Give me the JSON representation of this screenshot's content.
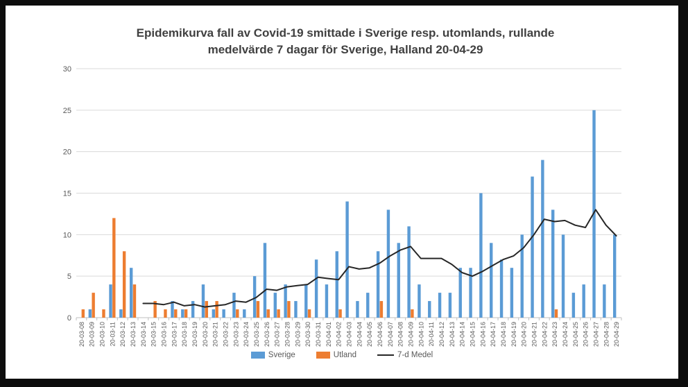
{
  "chart": {
    "title_line1": "Epidemikurva fall av Covid-19 smittade i Sverige resp. utomlands, rullande",
    "title_line2": "medelvärde 7 dagar för Sverige, Halland 20-04-29"
  },
  "chart_data": {
    "type": "bar",
    "title": "Epidemikurva fall av Covid-19 smittade i Sverige resp. utomlands, rullande medelvärde 7 dagar för Sverige, Halland 20-04-29",
    "xlabel": "",
    "ylabel": "",
    "ylim": [
      0,
      30
    ],
    "ytick_interval": 5,
    "grid": true,
    "legend_position": "bottom",
    "categories": [
      "20-03-08",
      "20-03-09",
      "20-03-10",
      "20-03-11",
      "20-03-12",
      "20-03-13",
      "20-03-14",
      "20-03-15",
      "20-03-16",
      "20-03-17",
      "20-03-18",
      "20-03-19",
      "20-03-20",
      "20-03-21",
      "20-03-22",
      "20-03-23",
      "20-03-24",
      "20-03-25",
      "20-03-26",
      "20-03-27",
      "20-03-28",
      "20-03-29",
      "20-03-30",
      "20-03-31",
      "20-04-01",
      "20-04-02",
      "20-04-03",
      "20-04-04",
      "20-04-05",
      "20-04-06",
      "20-04-07",
      "20-04-08",
      "20-04-09",
      "20-04-10",
      "20-04-11",
      "20-04-12",
      "20-04-13",
      "20-04-14",
      "20-04-15",
      "20-04-16",
      "20-04-17",
      "20-04-18",
      "20-04-19",
      "20-04-20",
      "20-04-21",
      "20-04-22",
      "20-04-23",
      "20-04-24",
      "20-04-25",
      "20-04-26",
      "20-04-27",
      "20-04-28",
      "20-04-29"
    ],
    "series": [
      {
        "name": "Sverige",
        "type": "bar",
        "color": "#5B9BD5",
        "values": [
          0,
          1,
          0,
          4,
          1,
          6,
          0,
          0,
          0,
          2,
          1,
          2,
          4,
          1,
          1,
          3,
          1,
          5,
          9,
          3,
          4,
          2,
          4,
          7,
          4,
          8,
          14,
          2,
          3,
          8,
          13,
          9,
          11,
          4,
          2,
          3,
          3,
          6,
          6,
          15,
          9,
          7,
          6,
          10,
          17,
          19,
          13,
          10,
          3,
          4,
          25,
          4,
          10
        ]
      },
      {
        "name": "Utland",
        "type": "bar",
        "color": "#ED7D31",
        "values": [
          1,
          3,
          1,
          12,
          8,
          4,
          0,
          2,
          1,
          1,
          1,
          0,
          2,
          2,
          0,
          1,
          0,
          2,
          1,
          1,
          2,
          0,
          1,
          0,
          0,
          1,
          0,
          0,
          0,
          2,
          0,
          0,
          1,
          0,
          0,
          0,
          0,
          0,
          0,
          0,
          0,
          0,
          0,
          0,
          0,
          0,
          1,
          0,
          0,
          0,
          0,
          0,
          0
        ]
      },
      {
        "name": "7-d Medel",
        "type": "line",
        "color": "#262626",
        "values": [
          null,
          null,
          null,
          null,
          null,
          null,
          1.71,
          1.71,
          1.57,
          1.86,
          1.43,
          1.57,
          1.29,
          1.43,
          1.57,
          2.0,
          1.86,
          2.43,
          3.43,
          3.29,
          3.71,
          3.86,
          4.0,
          4.86,
          4.71,
          4.57,
          6.14,
          5.86,
          6.0,
          6.57,
          7.43,
          8.14,
          8.57,
          7.14,
          7.14,
          7.14,
          6.43,
          5.43,
          5.0,
          5.57,
          6.29,
          7.0,
          7.43,
          8.43,
          10.0,
          11.86,
          11.57,
          11.71,
          11.14,
          10.86,
          13.0,
          11.14,
          9.86
        ]
      }
    ]
  },
  "colors": {
    "background_frame": "#0d0d0d",
    "canvas": "#ffffff",
    "title_text": "#404040",
    "axis_text": "#595959",
    "gridline": "#D9D9D9",
    "axis_line": "#BFBFBF",
    "sverige_bar": "#5B9BD5",
    "utland_bar": "#ED7D31",
    "medel_line": "#262626"
  }
}
